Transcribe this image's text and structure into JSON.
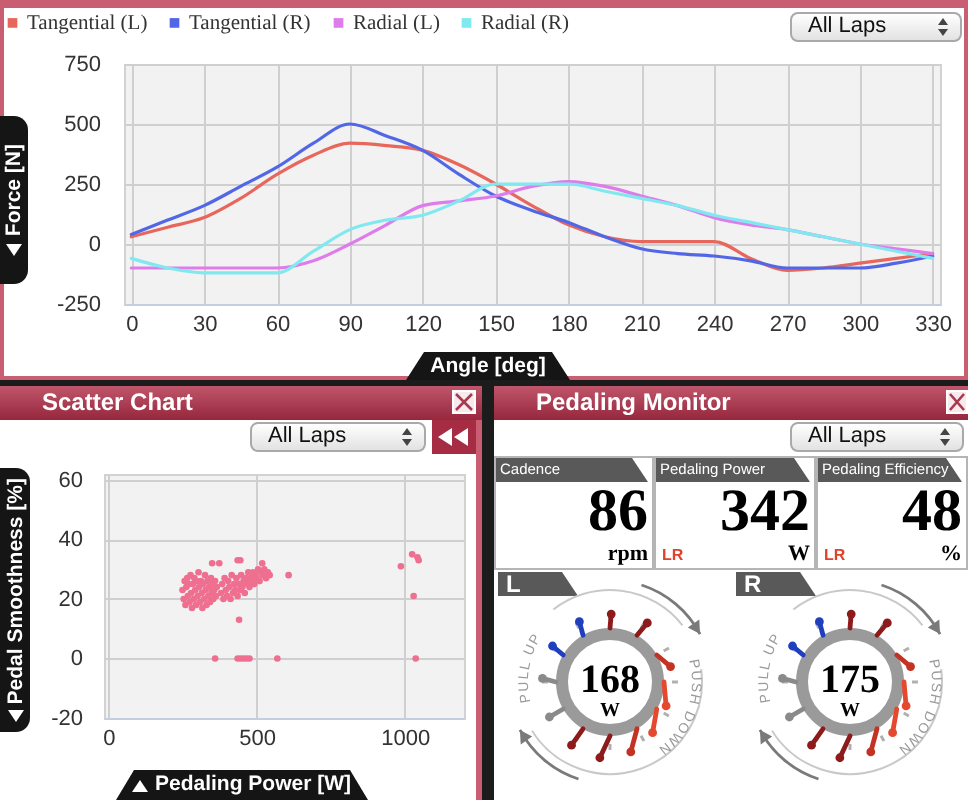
{
  "chart_data": [
    {
      "type": "line",
      "xlabel": "Angle [deg]",
      "ylabel": "Force [N]",
      "x": [
        0,
        15,
        30,
        45,
        60,
        75,
        90,
        105,
        120,
        135,
        150,
        165,
        180,
        195,
        210,
        225,
        240,
        255,
        270,
        285,
        300,
        315,
        330
      ],
      "series": [
        {
          "name": "Tangential (L)",
          "color": "#e8675d",
          "values": [
            30,
            70,
            110,
            190,
            290,
            370,
            420,
            410,
            390,
            330,
            250,
            160,
            80,
            30,
            10,
            10,
            10,
            -60,
            -110,
            -100,
            -80,
            -60,
            -40
          ]
        },
        {
          "name": "Tangential (R)",
          "color": "#5267e6",
          "values": [
            40,
            100,
            160,
            240,
            320,
            420,
            500,
            450,
            390,
            290,
            200,
            140,
            90,
            30,
            -20,
            -40,
            -50,
            -70,
            -100,
            -100,
            -100,
            -80,
            -50
          ]
        },
        {
          "name": "Radial (L)",
          "color": "#de7cec",
          "values": [
            -100,
            -100,
            -100,
            -100,
            -100,
            -70,
            0,
            80,
            160,
            180,
            200,
            240,
            260,
            240,
            200,
            160,
            110,
            80,
            60,
            30,
            0,
            -20,
            -40
          ]
        },
        {
          "name": "Radial (R)",
          "color": "#7fe9ef",
          "values": [
            -60,
            -100,
            -120,
            -120,
            -120,
            -30,
            60,
            100,
            120,
            180,
            250,
            250,
            250,
            220,
            190,
            160,
            120,
            90,
            60,
            30,
            0,
            -30,
            -60
          ]
        }
      ],
      "xlim": [
        -3,
        333
      ],
      "ylim": [
        -250,
        750
      ],
      "xticks": [
        0,
        30,
        60,
        90,
        120,
        150,
        180,
        210,
        240,
        270,
        300,
        330
      ],
      "yticks": [
        -250,
        0,
        250,
        500,
        750
      ],
      "grid": true,
      "legend": "top left",
      "annotations": [
        "All Laps"
      ]
    },
    {
      "type": "scatter",
      "title": "Scatter Chart",
      "xlabel": "Pedaling Power [W]",
      "ylabel": "Pedal Smoothness [%]",
      "color": "#ee6f8f",
      "marker": "circle",
      "x": [
        250,
        254,
        257,
        260,
        263,
        266,
        268,
        271,
        274,
        277,
        279,
        282,
        285,
        288,
        290,
        293,
        296,
        298,
        301,
        304,
        306,
        309,
        312,
        315,
        317,
        320,
        323,
        326,
        328,
        331,
        334,
        337,
        340,
        343,
        346,
        348,
        351,
        354,
        357,
        360,
        363,
        366,
        380,
        384,
        388,
        392,
        396,
        400,
        404,
        408,
        412,
        416,
        420,
        424,
        428,
        432,
        436,
        440,
        444,
        448,
        452,
        456,
        460,
        464,
        468,
        472,
        476,
        480,
        484,
        488,
        492,
        496,
        500,
        505,
        510,
        515,
        520,
        526,
        532,
        538,
        544,
        350,
        374,
        436,
        445,
        519,
        608,
        441,
        360,
        436,
        446,
        456,
        466,
        476,
        570,
        987,
        1025,
        1043,
        1047,
        1030,
        1037
      ],
      "values": [
        23,
        20,
        26,
        18,
        24,
        27,
        21,
        25,
        19,
        28,
        22,
        17,
        25,
        20,
        27,
        23,
        18,
        26,
        21,
        29,
        24,
        19,
        26,
        22,
        17,
        25,
        20,
        28,
        23,
        18,
        26,
        21,
        24,
        19,
        27,
        22,
        25,
        20,
        23,
        26,
        21,
        24,
        22,
        25,
        20,
        27,
        23,
        21,
        26,
        24,
        20,
        28,
        22,
        25,
        23,
        27,
        21,
        25,
        23,
        28,
        24,
        26,
        22,
        27,
        25,
        29,
        24,
        27,
        26,
        29,
        25,
        28,
        27,
        30,
        26,
        29,
        28,
        30,
        27,
        29,
        28,
        32,
        32,
        33,
        33,
        32,
        28,
        13,
        0,
        0,
        0,
        0,
        0,
        0,
        0,
        31,
        35,
        34,
        33,
        21,
        0
      ],
      "xlim": [
        -15,
        1200
      ],
      "ylim": [
        -20,
        62
      ],
      "xticks": [
        0,
        500,
        1000
      ],
      "yticks": [
        -20,
        0,
        20,
        40,
        60
      ],
      "grid": true,
      "annotations": [
        "All Laps"
      ]
    },
    {
      "type": "other",
      "title": "Pedaling Monitor",
      "annotations": [
        "All Laps",
        "Cadence",
        "86",
        "rpm",
        "Pedaling Power",
        "342",
        "W",
        "LR",
        "Pedaling Efficiency",
        "48",
        "%",
        "LR",
        "L",
        "168",
        "W",
        "PULL UP",
        "PUSH DOWN",
        "R",
        "175",
        "W",
        "PULL UP",
        "PUSH DOWN"
      ]
    }
  ]
}
